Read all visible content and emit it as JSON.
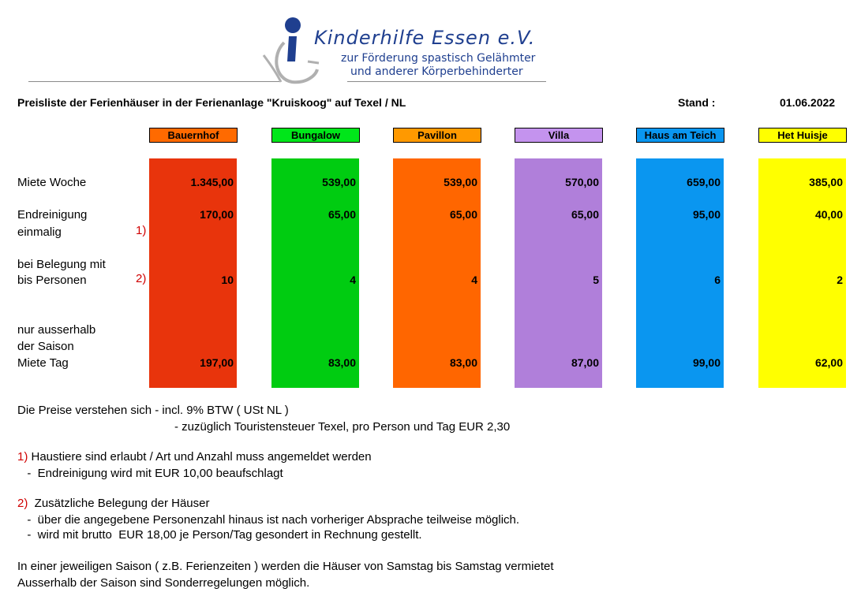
{
  "logo": {
    "name": "Kinderhilfe Essen e.V.",
    "sub1": "zur Förderung spastisch Gelähmter",
    "sub2": "und anderer Körperbehinderter"
  },
  "header": {
    "title": "Preisliste der Ferienhäuser in der Ferienanlage \"Kruiskoog\" auf Texel / NL",
    "stand_label": "Stand :",
    "stand_value": "01.06.2022"
  },
  "row_labels": {
    "miete_woche": "Miete  Woche",
    "endreinigung_1": "Endreinigung",
    "endreinigung_2": "einmalig",
    "belegung_1": "bei Belegung mit",
    "belegung_2": "bis Personen",
    "saison_1": "nur ausserhalb",
    "saison_2": "der Saison",
    "saison_3": "Miete  Tag",
    "marker1": "1)",
    "marker2": "2)"
  },
  "houses": [
    {
      "name": "Bauernhof",
      "color": "#e8340c",
      "header_color": "#ff6a00",
      "woche": "1.345,00",
      "reinigung": "170,00",
      "personen": "10",
      "tag": "197,00"
    },
    {
      "name": "Bungalow",
      "color": "#00cc11",
      "header_color": "#00e61a",
      "woche": "539,00",
      "reinigung": "65,00",
      "personen": "4",
      "tag": "83,00"
    },
    {
      "name": "Pavillon",
      "color": "#ff6600",
      "header_color": "#ff9900",
      "woche": "539,00",
      "reinigung": "65,00",
      "personen": "4",
      "tag": "83,00"
    },
    {
      "name": "Villa",
      "color": "#b07fda",
      "header_color": "#c493ee",
      "woche": "570,00",
      "reinigung": "65,00",
      "personen": "5",
      "tag": "87,00"
    },
    {
      "name": "Haus am Teich",
      "color": "#0a96f0",
      "header_color": "#0a96f0",
      "woche": "659,00",
      "reinigung": "95,00",
      "personen": "6",
      "tag": "99,00"
    },
    {
      "name": "Het Huisje",
      "color": "#ffff00",
      "header_color": "#ffff00",
      "woche": "385,00",
      "reinigung": "40,00",
      "personen": "2",
      "tag": "62,00"
    }
  ],
  "notes": {
    "preise_1": "Die Preise verstehen sich   -  incl. 9% BTW ( USt NL )",
    "preise_2": "-  zuzüglich Touristensteuer Texel, pro Person und Tag EUR 2,30",
    "n1_marker": "1)",
    "n1_text": " Haustiere sind erlaubt / Art und Anzahl muss angemeldet werden",
    "n1_sub": "  -  Endreinigung wird mit EUR 10,00 beaufschlagt",
    "n2_marker": "2)",
    "n2_text": "  Zusätzliche Belegung der Häuser",
    "n2_sub1": "  -  über die angegebene Personenzahl hinaus ist nach vorheriger Absprache teilweise möglich.",
    "n2_sub2": "  -  wird mit brutto  EUR 18,00 je Person/Tag gesondert in Rechnung gestellt.",
    "saison_1": "In einer jeweiligen Saison ( z.B. Ferienzeiten ) werden die Häuser von Samstag bis Samstag vermietet",
    "saison_2": "Ausserhalb der Saison sind  Sonderregelungen möglich."
  }
}
